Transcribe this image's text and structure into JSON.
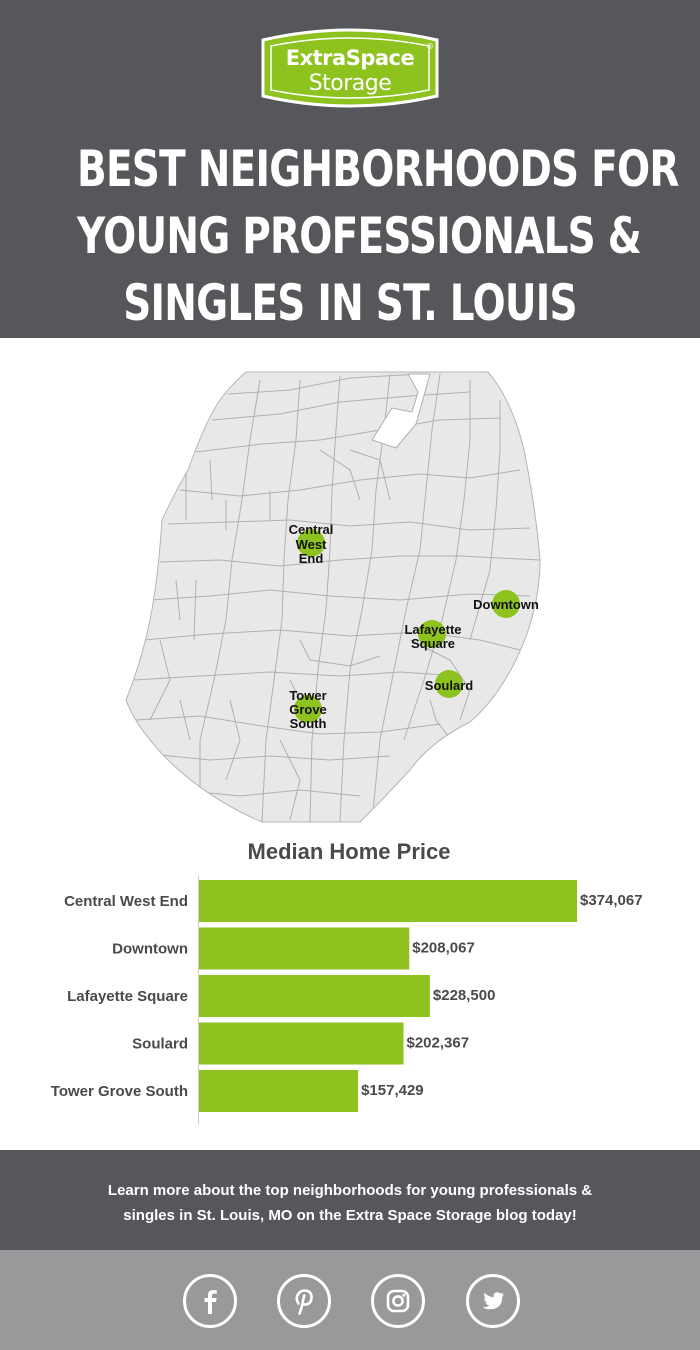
{
  "brand": {
    "line1": "ExtraSpace",
    "line2": "Storage",
    "registered": "®",
    "accent": "#8dc21f"
  },
  "title_lines": [
    "BEST NEIGHBORHOODS FOR",
    "YOUNG PROFESSIONALS &",
    "SINGLES IN ST. LOUIS"
  ],
  "map": {
    "neighborhoods": [
      {
        "lines": [
          "Central",
          "West",
          "End"
        ]
      },
      {
        "lines": [
          "Downtown"
        ]
      },
      {
        "lines": [
          "Lafayette",
          "Square"
        ]
      },
      {
        "lines": [
          "Soulard"
        ]
      },
      {
        "lines": [
          "Tower",
          "Grove",
          "South"
        ]
      }
    ]
  },
  "chart_data": {
    "type": "bar",
    "orientation": "horizontal",
    "title": "Median Home Price",
    "categories": [
      "Central West End",
      "Downtown",
      "Lafayette Square",
      "Soulard",
      "Tower Grove South"
    ],
    "values": [
      374067,
      208067,
      228500,
      202367,
      157429
    ],
    "value_labels": [
      "$374,067",
      "$208,067",
      "$228,500",
      "$202,367",
      "$157,429"
    ],
    "bar_color": "#8dc21f",
    "grid": false
  },
  "cta": {
    "line1": "Learn more about the top neighborhoods for young professionals &",
    "line2": "singles in St. Louis, MO on the Extra Space Storage blog today!"
  },
  "social": [
    {
      "icon": "facebook-icon"
    },
    {
      "icon": "pinterest-icon"
    },
    {
      "icon": "instagram-icon"
    },
    {
      "icon": "twitter-icon"
    }
  ]
}
